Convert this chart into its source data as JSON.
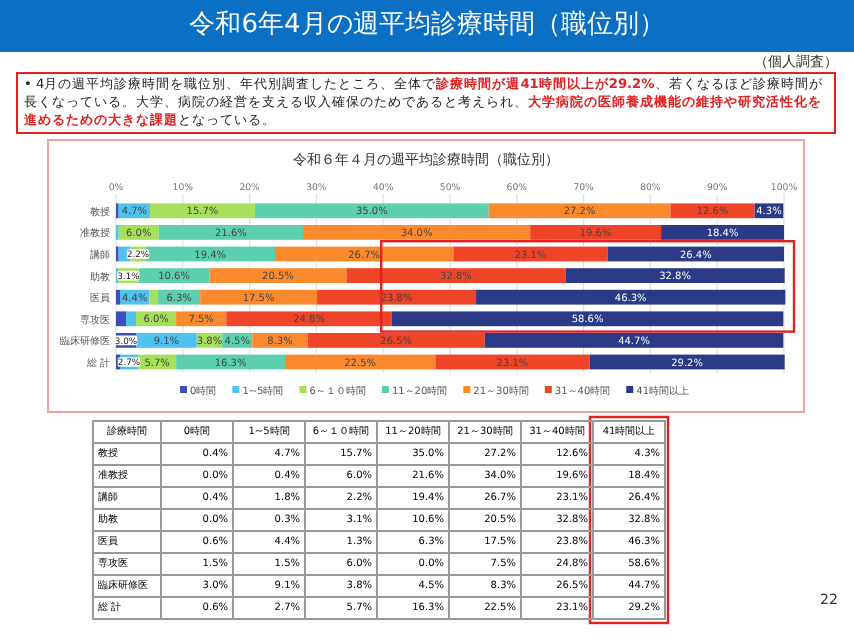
{
  "chart_data": [
    {
      "type": "bar",
      "orientation": "horizontal",
      "stacked": true,
      "title": "令和6年4月の週平均診療時間（職位別）",
      "subtitle": "令和６年４月の週平均診療時間（職位別）",
      "annotations": [
        "（個人調査）",
        "• 4月の週平均診療時間を職位別、年代別調査したところ、全体で",
        "診療時間が週41時間以上が29.2%",
        "、若くなるほど診療時間が長くなっている。大学、病院の経営を支える収入確保のためであると考えられ、",
        "大学病院の医師養成機能の維持や研究活性化を進めるための大きな課題",
        "となっている。",
        "22"
      ],
      "categories": [
        "教授",
        "准教授",
        "講師",
        "助教",
        "医員",
        "専攻医",
        "臨床研修医",
        "総 計"
      ],
      "xlim": [
        0,
        100
      ],
      "xticks": [
        {
          "value": 0,
          "label": "0%"
        },
        {
          "value": 10,
          "label": "10%"
        },
        {
          "value": 20,
          "label": "20%"
        },
        {
          "value": 30,
          "label": "30%"
        },
        {
          "value": 40,
          "label": "40%"
        },
        {
          "value": 50,
          "label": "50%"
        },
        {
          "value": 60,
          "label": "60%"
        },
        {
          "value": 70,
          "label": "70%"
        },
        {
          "value": 80,
          "label": "80%"
        },
        {
          "value": 90,
          "label": "90%"
        },
        {
          "value": 100,
          "label": "100%"
        }
      ],
      "grid": "x",
      "legend": "bottom",
      "series": [
        {
          "name": "0時間",
          "color": "#3a4fb8",
          "values": [
            0.4,
            0.0,
            0.4,
            0.0,
            0.6,
            1.5,
            3.0,
            0.6
          ],
          "value_labels": [
            null,
            null,
            null,
            null,
            null,
            null,
            "3.0%",
            null
          ]
        },
        {
          "name": "1~5時間",
          "color": "#4fc3f0",
          "values": [
            4.7,
            0.4,
            1.8,
            0.3,
            4.4,
            1.5,
            9.1,
            2.7
          ],
          "value_labels": [
            "4.7%",
            null,
            null,
            null,
            "4.4%",
            null,
            "9.1%",
            "2.7%"
          ]
        },
        {
          "name": "6～１０時間",
          "color": "#a6e05a",
          "values": [
            15.7,
            6.0,
            2.2,
            3.1,
            1.3,
            6.0,
            3.8,
            5.7
          ],
          "value_labels": [
            "15.7%",
            "6.0%",
            "2.2%",
            "3.1%",
            null,
            "6.0%",
            "3.8%",
            "5.7%"
          ]
        },
        {
          "name": "11～20時間",
          "color": "#5ccfae",
          "values": [
            35.0,
            21.6,
            19.4,
            10.6,
            6.3,
            0.0,
            4.5,
            16.3
          ],
          "value_labels": [
            "35.0%",
            "21.6%",
            "19.4%",
            "10.6%",
            "6.3%",
            null,
            "4.5%",
            "16.3%"
          ]
        },
        {
          "name": "21～30時間",
          "color": "#fb8a2c",
          "values": [
            27.2,
            34.0,
            26.7,
            20.5,
            17.5,
            7.5,
            8.3,
            22.5
          ],
          "value_labels": [
            "27.2%",
            "34.0%",
            "26.7%",
            "20.5%",
            "17.5%",
            "7.5%",
            "8.3%",
            "22.5%"
          ]
        },
        {
          "name": "31～40時間",
          "color": "#ef4428",
          "values": [
            12.6,
            19.6,
            23.1,
            32.8,
            23.8,
            24.8,
            26.5,
            23.1
          ],
          "value_labels": [
            "12.6%",
            "19.6%",
            "23.1%",
            "32.8%",
            "23.8%",
            "24.8%",
            "26.5%",
            "23.1%"
          ]
        },
        {
          "name": "41時間以上",
          "color": "#2b3a86",
          "values": [
            4.3,
            18.4,
            26.4,
            32.8,
            46.3,
            58.6,
            44.7,
            29.2
          ],
          "value_labels": [
            "4.3%",
            "18.4%",
            "26.4%",
            "32.8%",
            "46.3%",
            "58.6%",
            "44.7%",
            "29.2%"
          ]
        }
      ]
    },
    {
      "type": "other",
      "annotations": [
        "診療時間",
        "0時間",
        "1~5時間",
        "6～１０時間",
        "11～20時間",
        "21～30時間",
        "31～40時間",
        "41時間以上",
        "教授",
        "0.4%",
        "4.7%",
        "15.7%",
        "35.0%",
        "27.2%",
        "12.6%",
        "4.3%",
        "准教授",
        "0.0%",
        "0.4%",
        "6.0%",
        "21.6%",
        "34.0%",
        "19.6%",
        "18.4%",
        "講師",
        "0.4%",
        "1.8%",
        "2.2%",
        "19.4%",
        "26.7%",
        "23.1%",
        "26.4%",
        "助教",
        "0.0%",
        "0.3%",
        "3.1%",
        "10.6%",
        "20.5%",
        "32.8%",
        "32.8%",
        "医員",
        "0.6%",
        "4.4%",
        "1.3%",
        "6.3%",
        "17.5%",
        "23.8%",
        "46.3%",
        "専攻医",
        "1.5%",
        "1.5%",
        "6.0%",
        "0.0%",
        "7.5%",
        "24.8%",
        "58.6%",
        "臨床研修医",
        "3.0%",
        "9.1%",
        "3.8%",
        "4.5%",
        "8.3%",
        "26.5%",
        "44.7%",
        "総 計",
        "0.6%",
        "2.7%",
        "5.7%",
        "16.3%",
        "22.5%",
        "23.1%",
        "29.2%"
      ]
    }
  ]
}
